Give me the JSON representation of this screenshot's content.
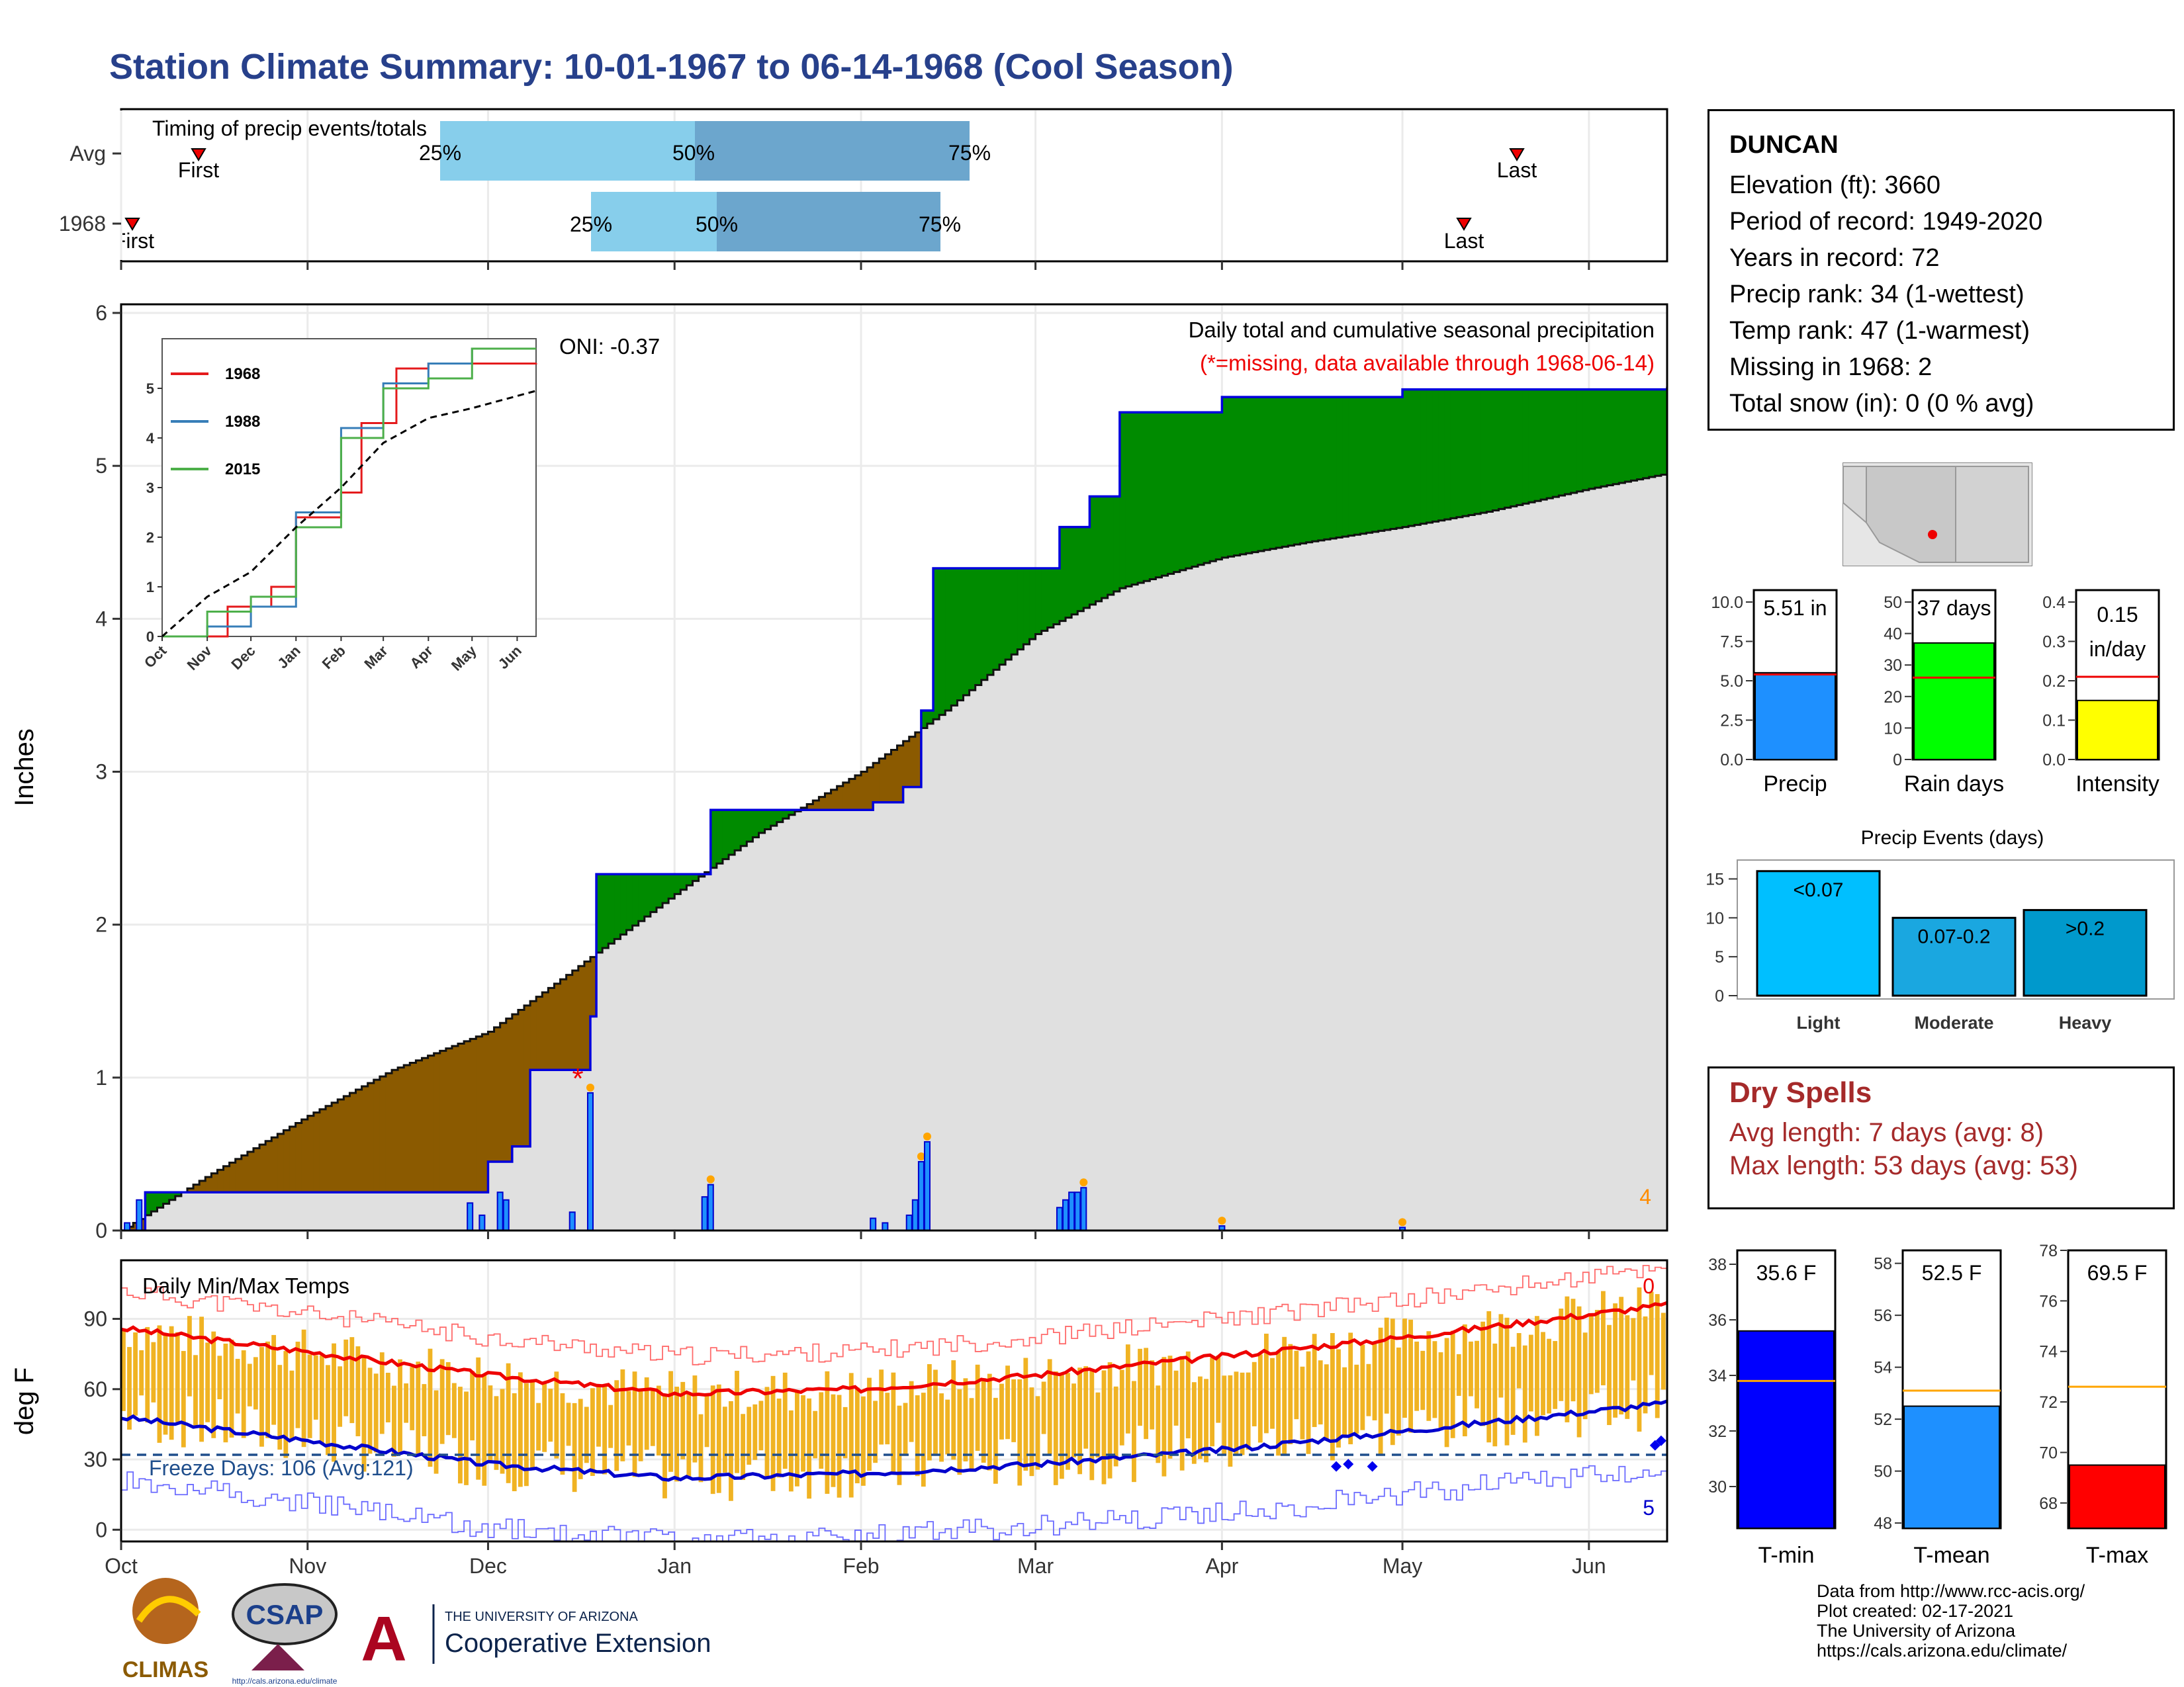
{
  "title": "Station Climate Summary: 10-01-1967 to 06-14-1968 (Cool Season)",
  "timing_panel": {
    "label": "Timing of precip events/totals",
    "rows": [
      {
        "name": "Avg",
        "first": "First",
        "last": "Last",
        "p25": "25%",
        "p50": "50%",
        "p75": "75%"
      },
      {
        "name": "1968",
        "first": "First",
        "last": "Last",
        "p25": "25%",
        "p50": "50%",
        "p75": "75%"
      }
    ]
  },
  "main_chart": {
    "ylabel": "Inches",
    "y_ticks": [
      "0",
      "1",
      "2",
      "3",
      "4",
      "5",
      "6"
    ],
    "title_line1": "Daily total and cumulative seasonal precipitation",
    "title_line2": "(*=missing, data available through 1968-06-14)",
    "oni": "ONI: -0.37",
    "count_label": "4",
    "missing_marker": "*"
  },
  "inset": {
    "x_ticks": [
      "Oct",
      "Nov",
      "Dec",
      "Jan",
      "Feb",
      "Mar",
      "Apr",
      "May",
      "Jun"
    ],
    "y_ticks": [
      "0",
      "1",
      "2",
      "3",
      "4",
      "5"
    ],
    "legend": [
      {
        "name": "1968",
        "color": "#e41a1c"
      },
      {
        "name": "1988",
        "color": "#377eb8"
      },
      {
        "name": "2015",
        "color": "#4daf4a"
      }
    ]
  },
  "temp_chart": {
    "ylabel": "deg F",
    "title": "Daily Min/Max Temps",
    "y_ticks": [
      "0",
      "30",
      "60",
      "90"
    ],
    "freeze": "Freeze Days: 106 (Avg:121)",
    "top_count": "0",
    "bottom_count": "5",
    "x_ticks": [
      "Oct",
      "Nov",
      "Dec",
      "Jan",
      "Feb",
      "Mar",
      "Apr",
      "May",
      "Jun"
    ]
  },
  "station": {
    "name": "DUNCAN",
    "lines": [
      "Elevation (ft): 3660",
      "Period of record: 1949-2020",
      "Years in record: 72",
      "Precip rank: 34 (1-wettest)",
      "Temp rank: 47 (1-warmest)",
      "Missing in 1968: 2",
      "Total snow (in): 0 (0 % avg)"
    ]
  },
  "mini_bars": [
    {
      "label": "Precip",
      "value_label": "5.51 in",
      "value": 5.51,
      "avg": 5.4,
      "ymax": 10.0,
      "ticks": [
        "0.0",
        "2.5",
        "5.0",
        "7.5",
        "10.0"
      ],
      "color": "#1e90ff"
    },
    {
      "label": "Rain days",
      "value_label": "37 days",
      "value": 37,
      "avg": 26,
      "ymax": 50,
      "ticks": [
        "0",
        "10",
        "20",
        "30",
        "40",
        "50"
      ],
      "color": "#00ff00"
    },
    {
      "label": "Intensity",
      "value_label": "0.15",
      "value_label2": "in/day",
      "value": 0.15,
      "avg": 0.21,
      "ymax": 0.4,
      "ticks": [
        "0.0",
        "0.1",
        "0.2",
        "0.3",
        "0.4"
      ],
      "color": "#ffff00"
    }
  ],
  "events": {
    "title": "Precip Events (days)",
    "ticks": [
      "0",
      "5",
      "10",
      "15"
    ],
    "bars": [
      {
        "label": "Light",
        "value_label": "<0.07",
        "value": 16,
        "color": "#00bfff"
      },
      {
        "label": "Moderate",
        "value_label": "0.07-0.2",
        "value": 10,
        "color": "#1aa7e0"
      },
      {
        "label": "Heavy",
        "value_label": ">0.2",
        "value": 11,
        "color": "#0099cc"
      }
    ]
  },
  "dry_spells": {
    "title": "Dry Spells",
    "avg": "Avg length: 7 days (avg: 8)",
    "max": "Max length: 53 days (avg: 53)"
  },
  "temp_bars": [
    {
      "label": "T-min",
      "value_label": "35.6 F",
      "value": 35.6,
      "avg": 33.8,
      "ymin": 28.5,
      "ymax": 38.5,
      "ticks": [
        "30",
        "32",
        "34",
        "36",
        "38"
      ],
      "color": "#0000ff"
    },
    {
      "label": "T-mean",
      "value_label": "52.5 F",
      "value": 52.5,
      "avg": 53.1,
      "ymin": 47.8,
      "ymax": 58.5,
      "ticks": [
        "48",
        "50",
        "52",
        "54",
        "56",
        "58"
      ],
      "color": "#1e90ff"
    },
    {
      "label": "T-max",
      "value_label": "69.5 F",
      "value": 69.5,
      "avg": 72.6,
      "ymin": 67.0,
      "ymax": 78.0,
      "ticks": [
        "68",
        "70",
        "72",
        "74",
        "76",
        "78"
      ],
      "color": "#ff0000"
    }
  ],
  "credits": [
    "Data from http://www.rcc-acis.org/",
    "Plot created: 02-17-2021",
    "The University of Arizona",
    "https://cals.arizona.edu/climate/"
  ],
  "logos": {
    "climas": "CLIMAS",
    "csap": "CSAP",
    "csap_url": "http://cals.arizona.edu/climate",
    "ua_small": "THE UNIVERSITY OF ARIZONA",
    "ua_big": "Cooperative Extension"
  },
  "chart_data": {
    "type": "area",
    "x_start": "1967-10-01",
    "x_end": "1968-06-14",
    "ylabel": "Inches",
    "ylim": [
      0,
      6
    ],
    "avg_cumulative": {
      "x": [
        "1967-10-01",
        "1967-10-15",
        "1967-11-01",
        "1967-11-15",
        "1967-12-01",
        "1967-12-15",
        "1968-01-01",
        "1968-01-15",
        "1968-02-01",
        "1968-02-15",
        "1968-03-01",
        "1968-03-15",
        "1968-04-01",
        "1968-04-15",
        "1968-05-01",
        "1968-05-15",
        "1968-06-01",
        "1968-06-14"
      ],
      "y": [
        0.0,
        0.35,
        0.75,
        1.05,
        1.3,
        1.7,
        2.2,
        2.6,
        3.0,
        3.4,
        3.9,
        4.2,
        4.4,
        4.5,
        4.6,
        4.7,
        4.85,
        4.95
      ]
    },
    "cumulative_1968": {
      "x": [
        "1967-10-01",
        "1967-10-05",
        "1967-11-27",
        "1967-12-01",
        "1967-12-05",
        "1967-12-08",
        "1967-12-17",
        "1967-12-18",
        "1967-12-19",
        "1968-01-05",
        "1968-01-07",
        "1968-01-31",
        "1968-02-03",
        "1968-02-08",
        "1968-02-11",
        "1968-02-13",
        "1968-02-15",
        "1968-03-01",
        "1968-03-05",
        "1968-03-07",
        "1968-03-10",
        "1968-03-15",
        "1968-04-01",
        "1968-05-01",
        "1968-06-14"
      ],
      "y": [
        0.0,
        0.25,
        0.25,
        0.45,
        0.55,
        1.05,
        1.05,
        1.4,
        2.33,
        2.33,
        2.75,
        2.75,
        2.8,
        2.9,
        3.4,
        4.33,
        4.33,
        4.33,
        4.6,
        4.6,
        4.8,
        5.35,
        5.45,
        5.5,
        5.51
      ]
    },
    "daily_precip": {
      "x": [
        "1967-10-02",
        "1967-10-04",
        "1967-11-28",
        "1967-11-30",
        "1967-12-03",
        "1967-12-04",
        "1967-12-15",
        "1967-12-18",
        "1968-01-06",
        "1968-01-07",
        "1968-02-03",
        "1968-02-05",
        "1968-02-09",
        "1968-02-10",
        "1968-02-11",
        "1968-02-12",
        "1968-03-05",
        "1968-03-06",
        "1968-03-07",
        "1968-03-08",
        "1968-03-09",
        "1968-04-01",
        "1968-05-01"
      ],
      "y": [
        0.05,
        0.2,
        0.18,
        0.1,
        0.25,
        0.2,
        0.12,
        0.9,
        0.22,
        0.3,
        0.08,
        0.05,
        0.1,
        0.2,
        0.45,
        0.58,
        0.15,
        0.2,
        0.25,
        0.25,
        0.28,
        0.03,
        0.02
      ]
    },
    "inset_series": [
      {
        "name": "1968",
        "x": [
          "1967-10-01",
          "1967-11-15",
          "1967-12-15",
          "1968-01-01",
          "1968-02-01",
          "1968-02-15",
          "1968-03-10",
          "1968-04-01",
          "1968-06-14"
        ],
        "y": [
          0.0,
          0.6,
          1.0,
          2.4,
          2.9,
          4.3,
          5.4,
          5.5,
          5.51
        ]
      },
      {
        "name": "1988",
        "x": [
          "1967-10-01",
          "1967-11-01",
          "1967-12-01",
          "1968-01-01",
          "1968-02-01",
          "1968-03-01",
          "1968-04-01",
          "1968-05-01",
          "1968-06-14"
        ],
        "y": [
          0.0,
          0.2,
          0.6,
          2.5,
          4.2,
          5.1,
          5.5,
          5.8,
          5.8
        ]
      },
      {
        "name": "2015",
        "x": [
          "1967-10-01",
          "1967-11-01",
          "1967-12-01",
          "1968-01-01",
          "1968-02-01",
          "1968-03-01",
          "1968-04-01",
          "1968-05-01",
          "1968-06-14"
        ],
        "y": [
          0.0,
          0.5,
          0.8,
          2.2,
          4.0,
          5.0,
          5.2,
          5.8,
          5.8
        ]
      },
      {
        "name": "Avg",
        "x": [
          "1967-10-01",
          "1967-11-01",
          "1967-12-01",
          "1968-01-01",
          "1968-02-01",
          "1968-03-01",
          "1968-04-01",
          "1968-05-01",
          "1968-06-14"
        ],
        "y": [
          0.0,
          0.8,
          1.3,
          2.2,
          3.0,
          3.9,
          4.4,
          4.6,
          4.95
        ]
      }
    ],
    "temps": {
      "avg_max": {
        "x": [
          "1967-10-01",
          "1967-11-01",
          "1967-12-01",
          "1968-01-01",
          "1968-02-01",
          "1968-03-01",
          "1968-04-01",
          "1968-05-01",
          "1968-06-14"
        ],
        "y": [
          86,
          76,
          66,
          58,
          60,
          66,
          74,
          82,
          96
        ]
      },
      "avg_min": {
        "x": [
          "1967-10-01",
          "1967-11-01",
          "1967-12-01",
          "1968-01-01",
          "1968-02-01",
          "1968-03-01",
          "1968-04-01",
          "1968-05-01",
          "1968-06-14"
        ],
        "y": [
          48,
          38,
          28,
          22,
          24,
          28,
          34,
          42,
          54
        ]
      },
      "freeze_line": 32,
      "ylim": [
        -5,
        115
      ]
    }
  }
}
